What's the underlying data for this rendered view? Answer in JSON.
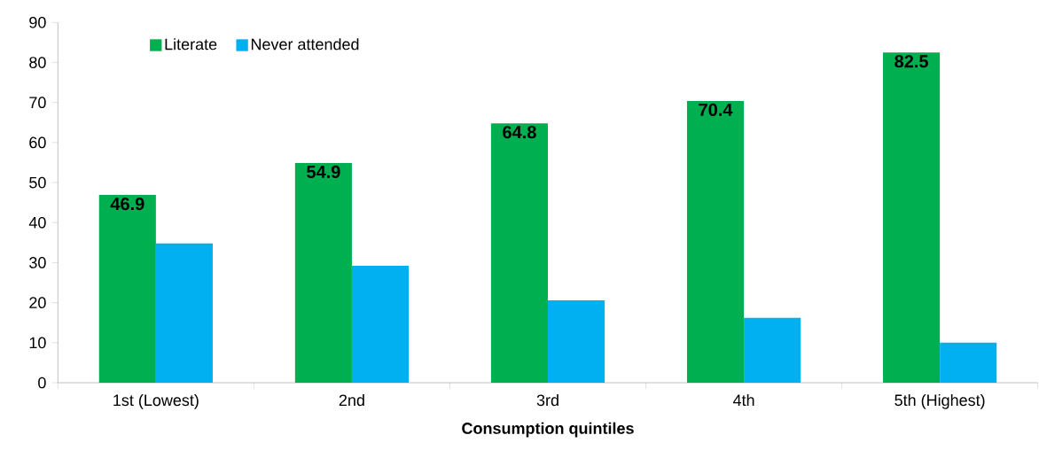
{
  "chart_data": {
    "type": "bar",
    "xlabel": "Consumption quintiles",
    "categories": [
      "1st (Lowest)",
      "2nd",
      "3rd",
      "4th",
      "5th (Highest)"
    ],
    "series": [
      {
        "name": "Literate",
        "color": "#00b050",
        "values": [
          46.9,
          54.9,
          64.8,
          70.4,
          82.5
        ],
        "value_labels": [
          "46.9",
          "54.9",
          "64.8",
          "70.4",
          "82.5"
        ]
      },
      {
        "name": "Never attended",
        "color": "#00b0f0",
        "values": [
          34.8,
          29.2,
          20.6,
          16.2,
          10.0
        ]
      }
    ],
    "ylim": [
      0,
      90
    ],
    "yticks": [
      0,
      10,
      20,
      30,
      40,
      50,
      60,
      70,
      80,
      90
    ],
    "grid": false,
    "legend": "top left"
  }
}
